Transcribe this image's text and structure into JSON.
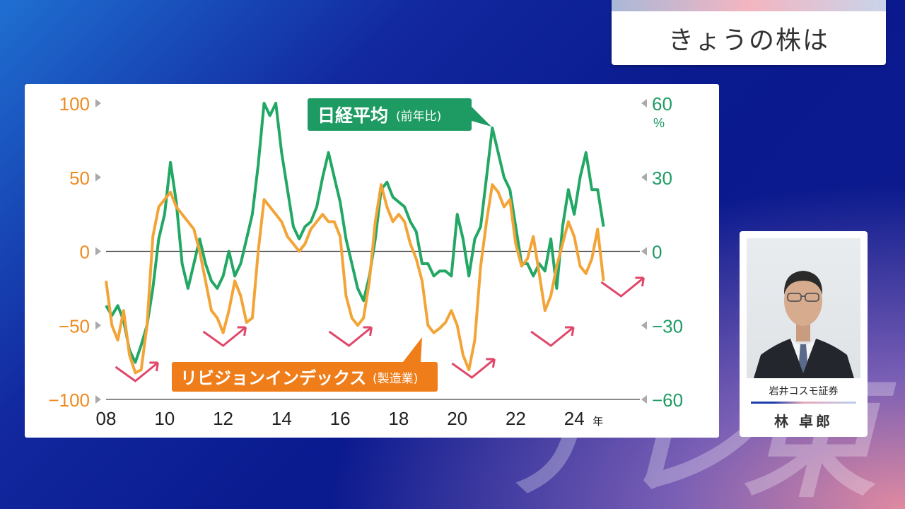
{
  "header": {
    "title": "きょうの株は"
  },
  "watermark": "テレ東",
  "profile": {
    "company": "岩井コスモ証券",
    "name": "林 卓郎"
  },
  "chart_data": {
    "type": "line",
    "x_tick_labels": [
      "08",
      "10",
      "12",
      "14",
      "16",
      "18",
      "20",
      "22",
      "24"
    ],
    "x_unit": "年",
    "xlim": [
      2008,
      2026
    ],
    "left_axis": {
      "ticks": [
        100,
        50,
        0,
        -50,
        -100
      ],
      "tick_labels": [
        "100",
        "50",
        "0",
        "−50",
        "−100"
      ],
      "ylim": [
        -100,
        100
      ],
      "color": "#ef8a1f"
    },
    "right_axis": {
      "ticks": [
        60,
        30,
        0,
        -30,
        -60
      ],
      "tick_labels": [
        "60",
        "30",
        "0",
        "−30",
        "−60"
      ],
      "unit": "%",
      "ylim": [
        -60,
        60
      ],
      "color": "#1e9b63"
    },
    "series": [
      {
        "name": "日経平均",
        "name_note": "(前年比)",
        "axis": "right",
        "color": "#22a764",
        "x": [
          2008.0,
          2008.2,
          2008.4,
          2008.6,
          2008.8,
          2009.0,
          2009.2,
          2009.4,
          2009.6,
          2009.8,
          2010.0,
          2010.2,
          2010.4,
          2010.6,
          2010.8,
          2011.0,
          2011.2,
          2011.4,
          2011.6,
          2011.8,
          2012.0,
          2012.2,
          2012.4,
          2012.6,
          2012.8,
          2013.0,
          2013.2,
          2013.4,
          2013.6,
          2013.8,
          2014.0,
          2014.2,
          2014.4,
          2014.6,
          2014.8,
          2015.0,
          2015.2,
          2015.4,
          2015.6,
          2015.8,
          2016.0,
          2016.2,
          2016.4,
          2016.6,
          2016.8,
          2017.0,
          2017.2,
          2017.4,
          2017.6,
          2017.8,
          2018.0,
          2018.2,
          2018.4,
          2018.6,
          2018.8,
          2019.0,
          2019.2,
          2019.4,
          2019.6,
          2019.8,
          2020.0,
          2020.2,
          2020.4,
          2020.6,
          2020.8,
          2021.0,
          2021.2,
          2021.4,
          2021.6,
          2021.8,
          2022.0,
          2022.2,
          2022.4,
          2022.6,
          2022.8,
          2023.0,
          2023.2,
          2023.4,
          2023.6,
          2023.8,
          2024.0,
          2024.2,
          2024.4,
          2024.6,
          2024.8,
          2025.0
        ],
        "values": [
          -22,
          -26,
          -22,
          -28,
          -40,
          -45,
          -38,
          -30,
          -15,
          5,
          15,
          36,
          20,
          -5,
          -15,
          -5,
          5,
          -5,
          -12,
          -15,
          -10,
          0,
          -10,
          -5,
          5,
          15,
          35,
          60,
          55,
          60,
          40,
          25,
          10,
          5,
          10,
          12,
          18,
          30,
          40,
          30,
          20,
          5,
          -5,
          -15,
          -20,
          -10,
          5,
          25,
          28,
          22,
          20,
          18,
          12,
          8,
          -5,
          -5,
          -10,
          -8,
          -8,
          -10,
          15,
          5,
          -10,
          5,
          10,
          30,
          50,
          40,
          30,
          25,
          10,
          -5,
          -5,
          -10,
          -5,
          -8,
          5,
          -15,
          10,
          25,
          15,
          30,
          40,
          25,
          25,
          10
        ]
      },
      {
        "name": "リビジョンインデックス",
        "name_note": "(製造業)",
        "axis": "left",
        "color": "#f3a437",
        "x": [
          2008.0,
          2008.2,
          2008.4,
          2008.6,
          2008.8,
          2009.0,
          2009.2,
          2009.4,
          2009.6,
          2009.8,
          2010.0,
          2010.2,
          2010.4,
          2010.6,
          2010.8,
          2011.0,
          2011.2,
          2011.4,
          2011.6,
          2011.8,
          2012.0,
          2012.2,
          2012.4,
          2012.6,
          2012.8,
          2013.0,
          2013.2,
          2013.4,
          2013.6,
          2013.8,
          2014.0,
          2014.2,
          2014.4,
          2014.6,
          2014.8,
          2015.0,
          2015.2,
          2015.4,
          2015.6,
          2015.8,
          2016.0,
          2016.2,
          2016.4,
          2016.6,
          2016.8,
          2017.0,
          2017.2,
          2017.4,
          2017.6,
          2017.8,
          2018.0,
          2018.2,
          2018.4,
          2018.6,
          2018.8,
          2019.0,
          2019.2,
          2019.4,
          2019.6,
          2019.8,
          2020.0,
          2020.2,
          2020.4,
          2020.6,
          2020.8,
          2021.0,
          2021.2,
          2021.4,
          2021.6,
          2021.8,
          2022.0,
          2022.2,
          2022.4,
          2022.6,
          2022.8,
          2023.0,
          2023.2,
          2023.4,
          2023.6,
          2023.8,
          2024.0,
          2024.2,
          2024.4,
          2024.6,
          2024.8,
          2025.0
        ],
        "values": [
          -20,
          -50,
          -60,
          -40,
          -70,
          -82,
          -80,
          -50,
          10,
          30,
          35,
          40,
          30,
          25,
          20,
          15,
          0,
          -20,
          -40,
          -45,
          -55,
          -40,
          -20,
          -30,
          -48,
          -45,
          0,
          35,
          30,
          25,
          20,
          10,
          5,
          0,
          5,
          15,
          20,
          25,
          20,
          20,
          10,
          -30,
          -45,
          -50,
          -45,
          -20,
          20,
          45,
          30,
          20,
          25,
          20,
          5,
          -5,
          -20,
          -50,
          -55,
          -52,
          -48,
          -40,
          -50,
          -70,
          -80,
          -60,
          -10,
          20,
          45,
          40,
          30,
          35,
          5,
          -10,
          -5,
          10,
          -15,
          -40,
          -30,
          -10,
          5,
          20,
          10,
          -10,
          -15,
          -5,
          15,
          -20
        ]
      }
    ],
    "annotations": {
      "trough_arrow_years": [
        2009.0,
        2012.0,
        2016.3,
        2020.5,
        2023.2,
        2025.6
      ]
    },
    "grid": false,
    "zero_line": true
  }
}
